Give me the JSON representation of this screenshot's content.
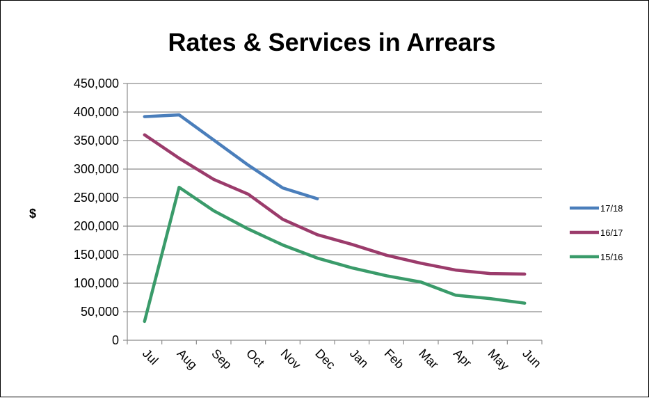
{
  "chart_data": {
    "type": "line",
    "title": "Rates & Services in Arrears",
    "xlabel": "",
    "ylabel": "$",
    "ylim": [
      0,
      450000
    ],
    "y_ticks": [
      "0",
      "50,000",
      "100,000",
      "150,000",
      "200,000",
      "250,000",
      "300,000",
      "350,000",
      "400,000",
      "450,000"
    ],
    "y_tick_values": [
      0,
      50000,
      100000,
      150000,
      200000,
      250000,
      300000,
      350000,
      400000,
      450000
    ],
    "categories": [
      "Jul",
      "Aug",
      "Sep",
      "Oct",
      "Nov",
      "Dec",
      "Jan",
      "Feb",
      "Mar",
      "Apr",
      "May",
      "Jun"
    ],
    "grid": true,
    "legend_position": "right",
    "series": [
      {
        "name": "17/18",
        "color": "#4A7EBB",
        "values": [
          392000,
          395000,
          351000,
          307000,
          267000,
          248000,
          null,
          null,
          null,
          null,
          null,
          null
        ]
      },
      {
        "name": "16/17",
        "color": "#9B3B6B",
        "values": [
          360000,
          319000,
          282000,
          256000,
          212000,
          185000,
          168000,
          149000,
          135000,
          123000,
          117000,
          116000
        ]
      },
      {
        "name": "15/16",
        "color": "#3A9B6A",
        "values": [
          33000,
          268000,
          227000,
          195000,
          167000,
          144000,
          127000,
          113000,
          102000,
          79000,
          73000,
          65000
        ]
      }
    ]
  }
}
